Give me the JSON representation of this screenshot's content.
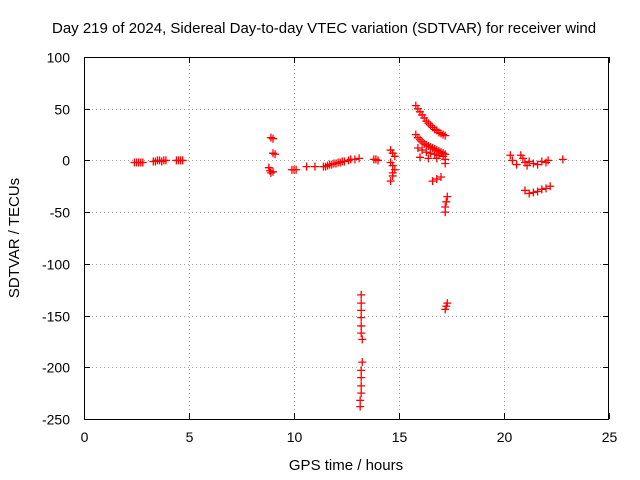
{
  "chart_data": {
    "type": "scatter",
    "title": "Day 219 of 2024, Sidereal Day-to-day VTEC variation (SDTVAR) for receiver wind",
    "xlabel": "GPS time / hours",
    "ylabel": "SDTVAR / TECUs",
    "xlim": [
      0,
      25
    ],
    "ylim": [
      -250,
      100
    ],
    "xticks": [
      0,
      5,
      10,
      15,
      20,
      25
    ],
    "yticks": [
      100,
      50,
      0,
      -50,
      -100,
      -150,
      -200,
      -250
    ],
    "grid": true,
    "marker": "plus",
    "color": "#ff0000",
    "series": [
      {
        "name": "SDTVAR",
        "points": [
          [
            2.4,
            -2
          ],
          [
            2.5,
            -2
          ],
          [
            2.6,
            -2
          ],
          [
            2.7,
            -2
          ],
          [
            2.8,
            -2
          ],
          [
            3.3,
            -1
          ],
          [
            3.4,
            -1
          ],
          [
            3.5,
            0
          ],
          [
            3.6,
            0
          ],
          [
            3.7,
            -1
          ],
          [
            3.8,
            0
          ],
          [
            3.9,
            0
          ],
          [
            4.4,
            0
          ],
          [
            4.5,
            0
          ],
          [
            4.6,
            0
          ],
          [
            4.7,
            0
          ],
          [
            8.8,
            -7
          ],
          [
            8.85,
            -10
          ],
          [
            8.9,
            -12
          ],
          [
            9.0,
            -11
          ],
          [
            8.9,
            22
          ],
          [
            9.0,
            21
          ],
          [
            9.0,
            7
          ],
          [
            9.1,
            6
          ],
          [
            9.9,
            -9
          ],
          [
            10.0,
            -9
          ],
          [
            10.1,
            -9
          ],
          [
            10.6,
            -6
          ],
          [
            11.0,
            -6
          ],
          [
            11.4,
            -6
          ],
          [
            11.5,
            -6
          ],
          [
            11.6,
            -5
          ],
          [
            11.7,
            -4
          ],
          [
            11.8,
            -4
          ],
          [
            11.9,
            -3
          ],
          [
            12.0,
            -3
          ],
          [
            12.1,
            -2
          ],
          [
            12.2,
            -2
          ],
          [
            12.3,
            -1
          ],
          [
            12.4,
            -1
          ],
          [
            12.6,
            0
          ],
          [
            12.7,
            1
          ],
          [
            12.9,
            1
          ],
          [
            13.1,
            2
          ],
          [
            13.2,
            -130
          ],
          [
            13.2,
            -138
          ],
          [
            13.2,
            -145
          ],
          [
            13.2,
            -152
          ],
          [
            13.2,
            -160
          ],
          [
            13.2,
            -167
          ],
          [
            13.25,
            -173
          ],
          [
            13.25,
            -195
          ],
          [
            13.2,
            -203
          ],
          [
            13.2,
            -210
          ],
          [
            13.2,
            -218
          ],
          [
            13.2,
            -225
          ],
          [
            13.15,
            -232
          ],
          [
            13.15,
            -238
          ],
          [
            13.8,
            1
          ],
          [
            13.9,
            1
          ],
          [
            14.0,
            0
          ],
          [
            14.6,
            10
          ],
          [
            14.7,
            7
          ],
          [
            14.8,
            4
          ],
          [
            14.6,
            -2
          ],
          [
            14.7,
            -5
          ],
          [
            14.8,
            -9
          ],
          [
            14.7,
            -15
          ],
          [
            14.6,
            -20
          ],
          [
            14.7,
            -12
          ],
          [
            15.8,
            53
          ],
          [
            15.9,
            50
          ],
          [
            16.0,
            47
          ],
          [
            16.1,
            44
          ],
          [
            16.2,
            41
          ],
          [
            16.3,
            38
          ],
          [
            16.4,
            36
          ],
          [
            16.5,
            34
          ],
          [
            16.6,
            32
          ],
          [
            16.7,
            30
          ],
          [
            16.8,
            29
          ],
          [
            16.9,
            27
          ],
          [
            17.0,
            26
          ],
          [
            17.1,
            25
          ],
          [
            17.2,
            24
          ],
          [
            15.8,
            25
          ],
          [
            15.9,
            22
          ],
          [
            16.0,
            20
          ],
          [
            16.1,
            18
          ],
          [
            16.2,
            16
          ],
          [
            16.3,
            15
          ],
          [
            16.4,
            14
          ],
          [
            16.5,
            13
          ],
          [
            16.6,
            12
          ],
          [
            16.7,
            11
          ],
          [
            16.8,
            10
          ],
          [
            16.9,
            9
          ],
          [
            17.0,
            8
          ],
          [
            17.1,
            7
          ],
          [
            17.2,
            6
          ],
          [
            15.9,
            12
          ],
          [
            16.1,
            10
          ],
          [
            16.3,
            8
          ],
          [
            16.5,
            7
          ],
          [
            16.7,
            6
          ],
          [
            16.9,
            5
          ],
          [
            17.1,
            4
          ],
          [
            16.0,
            3
          ],
          [
            16.4,
            2
          ],
          [
            16.8,
            2
          ],
          [
            17.2,
            1
          ],
          [
            16.6,
            -20
          ],
          [
            16.8,
            -18
          ],
          [
            17.0,
            -16
          ],
          [
            17.2,
            -3
          ],
          [
            17.3,
            -35
          ],
          [
            17.25,
            -40
          ],
          [
            17.2,
            -45
          ],
          [
            17.2,
            -50
          ],
          [
            17.3,
            -138
          ],
          [
            17.25,
            -141
          ],
          [
            17.2,
            -144
          ],
          [
            20.3,
            5
          ],
          [
            20.4,
            0
          ],
          [
            20.6,
            -4
          ],
          [
            20.8,
            5
          ],
          [
            20.9,
            2
          ],
          [
            21.0,
            -2
          ],
          [
            21.1,
            -5
          ],
          [
            21.2,
            -1
          ],
          [
            21.4,
            -3
          ],
          [
            21.6,
            -4
          ],
          [
            21.8,
            -1
          ],
          [
            22.0,
            -2
          ],
          [
            22.1,
            0
          ],
          [
            21.0,
            -29
          ],
          [
            21.2,
            -32
          ],
          [
            21.4,
            -31
          ],
          [
            21.6,
            -30
          ],
          [
            21.8,
            -28
          ],
          [
            22.0,
            -27
          ],
          [
            22.2,
            -25
          ],
          [
            22.8,
            1
          ]
        ]
      }
    ]
  }
}
